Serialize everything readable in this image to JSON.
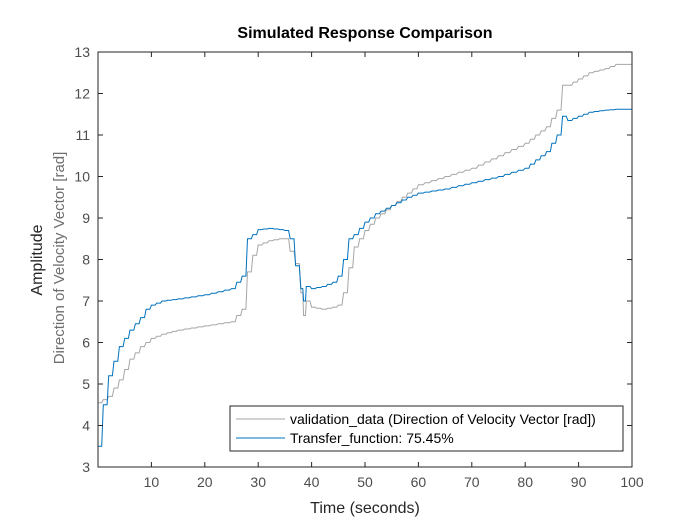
{
  "chart_data": {
    "type": "line",
    "title": "Simulated Response Comparison",
    "xlabel": "Time (seconds)",
    "ylabel": "Amplitude",
    "ysublabel": "Direction of Velocity Vector [rad]",
    "xlim": [
      0,
      100
    ],
    "ylim": [
      3,
      13
    ],
    "xticks": [
      10,
      20,
      30,
      40,
      50,
      60,
      70,
      80,
      90,
      100
    ],
    "yticks": [
      3,
      4,
      5,
      6,
      7,
      8,
      9,
      10,
      11,
      12,
      13
    ],
    "grid": false,
    "legend_position": "bottom-right",
    "colors": {
      "validation": "#a6a6a6",
      "model": "#0072bd",
      "axis": "#262626",
      "tick": "#4d4d4d"
    },
    "series": [
      {
        "name": "validation_data (Direction of Velocity Vector [rad])",
        "x": [
          0,
          2,
          4,
          6,
          8,
          10,
          12,
          15,
          20,
          25,
          27,
          28,
          29,
          30,
          32,
          34,
          35,
          36,
          37,
          38,
          38.5,
          39,
          40,
          42,
          44,
          45,
          46,
          47,
          48,
          50,
          52,
          55,
          58,
          60,
          65,
          70,
          75,
          80,
          84,
          86,
          87,
          88,
          90,
          92,
          95,
          97,
          100
        ],
        "values": [
          4.55,
          4.7,
          5.1,
          5.6,
          5.9,
          6.1,
          6.2,
          6.3,
          6.4,
          6.5,
          6.8,
          7.7,
          8.1,
          8.35,
          8.45,
          8.5,
          8.5,
          8.2,
          7.9,
          7.2,
          6.65,
          7.0,
          6.85,
          6.8,
          6.85,
          6.9,
          7.2,
          7.8,
          8.3,
          8.7,
          9.0,
          9.3,
          9.6,
          9.8,
          10.0,
          10.2,
          10.5,
          10.8,
          11.2,
          11.6,
          12.2,
          12.2,
          12.35,
          12.5,
          12.6,
          12.7,
          12.7
        ]
      },
      {
        "name": "Transfer_function: 75.45%",
        "x": [
          0,
          1,
          2,
          4,
          6,
          8,
          9,
          10,
          12,
          15,
          20,
          25,
          27,
          28,
          29,
          30,
          32,
          34,
          35,
          36,
          37,
          38,
          38.5,
          39,
          40,
          42,
          44,
          45,
          46,
          47,
          48,
          50,
          52,
          55,
          58,
          60,
          65,
          70,
          75,
          80,
          84,
          86,
          87,
          88,
          90,
          92,
          95,
          97,
          100
        ],
        "values": [
          3.5,
          4.5,
          5.2,
          5.9,
          6.3,
          6.6,
          6.8,
          6.9,
          7.0,
          7.05,
          7.15,
          7.3,
          7.6,
          8.5,
          8.6,
          8.72,
          8.75,
          8.72,
          8.7,
          8.5,
          7.85,
          7.3,
          7.0,
          7.35,
          7.3,
          7.35,
          7.45,
          7.6,
          8.0,
          8.5,
          8.6,
          8.9,
          9.1,
          9.3,
          9.5,
          9.6,
          9.7,
          9.85,
          10.0,
          10.2,
          10.6,
          11.0,
          11.45,
          11.35,
          11.45,
          11.55,
          11.6,
          11.62,
          11.62
        ]
      }
    ]
  }
}
